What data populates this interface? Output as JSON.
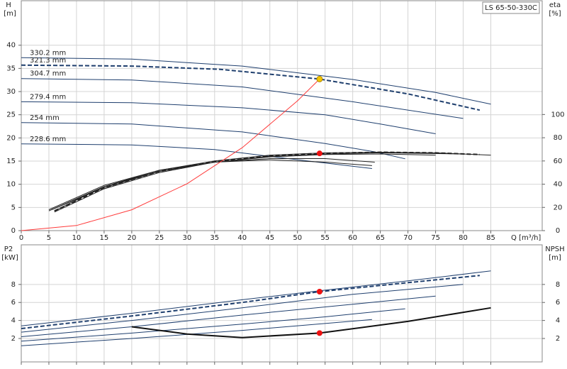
{
  "chart_data": [
    {
      "type": "line",
      "title": "LS 65-50-330C",
      "x_label": "Q [m³/h]",
      "y_label": "H",
      "y_unit": "[m]",
      "y2_label": "eta",
      "y2_unit": "[%]",
      "xlim": [
        0,
        94.3
      ],
      "xticks": [
        0,
        5,
        10,
        15,
        20,
        25,
        30,
        35,
        40,
        45,
        50,
        55,
        60,
        65,
        70,
        75,
        80,
        85
      ],
      "ylim": [
        0,
        49.6
      ],
      "yticks": [
        0,
        5,
        10,
        15,
        20,
        25,
        30,
        35,
        40
      ],
      "y2lim": [
        0,
        198
      ],
      "y2ticks": [
        0,
        20,
        40,
        60,
        80,
        100
      ],
      "grid": true,
      "series": [
        {
          "name": "330.2 mm",
          "color": "#1f3f6e",
          "x": [
            0,
            20,
            40,
            60,
            75,
            85
          ],
          "values": [
            37.3,
            37.0,
            35.5,
            32.6,
            29.8,
            27.3
          ]
        },
        {
          "name": "321.3 mm",
          "color": "#1f3f6e",
          "style": "dashed",
          "x": [
            0,
            20,
            36,
            54,
            70,
            83
          ],
          "values": [
            35.7,
            35.5,
            34.8,
            32.7,
            29.5,
            26.0
          ]
        },
        {
          "name": "304.7 mm",
          "color": "#1f3f6e",
          "x": [
            0,
            20,
            40,
            60,
            80
          ],
          "values": [
            32.8,
            32.5,
            31.0,
            27.8,
            24.2
          ]
        },
        {
          "name": "279.4 mm",
          "color": "#1f3f6e",
          "x": [
            0,
            20,
            40,
            55,
            65,
            75
          ],
          "values": [
            27.8,
            27.6,
            26.5,
            25.0,
            23.0,
            20.9
          ]
        },
        {
          "name": "254 mm",
          "color": "#1f3f6e",
          "x": [
            0,
            20,
            40,
            55,
            64,
            69.5
          ],
          "values": [
            23.3,
            23.0,
            21.3,
            18.8,
            17.0,
            15.5
          ]
        },
        {
          "name": "228.6 mm",
          "color": "#1f3f6e",
          "x": [
            0,
            20,
            35,
            50,
            63.5
          ],
          "values": [
            18.7,
            18.5,
            17.5,
            15.3,
            13.4
          ]
        },
        {
          "color": "#222222",
          "axis": "y2",
          "x": [
            6,
            15,
            25,
            35,
            45,
            55,
            65,
            75,
            85
          ],
          "values": [
            17,
            38,
            52,
            60,
            65,
            67,
            67.5,
            67,
            65
          ]
        },
        {
          "color": "#222222",
          "axis": "y2",
          "style": "dashed",
          "x": [
            6,
            15,
            25,
            35,
            45,
            54,
            65,
            75,
            83
          ],
          "values": [
            17,
            37,
            51,
            59.5,
            64.5,
            66.5,
            67.5,
            67,
            65.5
          ]
        },
        {
          "color": "#222222",
          "axis": "y2",
          "x": [
            6,
            15,
            25,
            35,
            45,
            55,
            65,
            80
          ],
          "values": [
            16,
            36,
            50,
            59,
            64,
            66,
            67,
            66
          ]
        },
        {
          "color": "#222222",
          "axis": "y2",
          "x": [
            5.5,
            15,
            25,
            35,
            45,
            55,
            65,
            75
          ],
          "values": [
            18,
            37,
            51,
            59,
            63.5,
            65.5,
            66,
            65
          ]
        },
        {
          "color": "#222222",
          "axis": "y2",
          "x": [
            5,
            15,
            25,
            35,
            45,
            55,
            64
          ],
          "values": [
            17,
            38,
            51,
            59,
            62,
            62,
            59
          ]
        },
        {
          "color": "#222222",
          "axis": "y2",
          "x": [
            5,
            15,
            25,
            35,
            45,
            55,
            63.5
          ],
          "values": [
            18,
            39,
            52,
            59,
            61,
            59,
            56
          ]
        },
        {
          "color": "#ff3b3b",
          "x": [
            0,
            10,
            20,
            30,
            40,
            50,
            54
          ],
          "values": [
            0,
            1.1,
            4.5,
            10.1,
            17.9,
            28,
            32.7
          ]
        },
        {
          "color": "#f5c400",
          "marker": true,
          "x": [
            54
          ],
          "values": [
            32.7
          ]
        },
        {
          "color": "#ee1111",
          "marker": true,
          "axis": "y2",
          "x": [
            54
          ],
          "values": [
            66.5
          ]
        }
      ]
    },
    {
      "type": "line",
      "y_label": "P2",
      "y_unit": "[kW]",
      "y2_label": "NPSH",
      "y2_unit": "[m]",
      "xlim": [
        0,
        94.3
      ],
      "ylim": [
        -0.6,
        12.4
      ],
      "yticks": [
        2,
        4,
        6,
        8
      ],
      "y2lim": [
        -0.6,
        12.4
      ],
      "y2ticks": [
        2,
        4,
        6,
        8
      ],
      "grid": true,
      "series": [
        {
          "color": "#1f3f6e",
          "x": [
            0,
            20,
            40,
            54,
            70,
            85
          ],
          "values": [
            3.4,
            4.8,
            6.3,
            7.3,
            8.4,
            9.5
          ]
        },
        {
          "color": "#1f3f6e",
          "style": "dashed",
          "x": [
            0,
            20,
            40,
            54,
            70,
            83
          ],
          "values": [
            3.1,
            4.5,
            6.0,
            7.2,
            8.2,
            9.0
          ]
        },
        {
          "color": "#1f3f6e",
          "x": [
            0,
            20,
            40,
            60,
            80
          ],
          "values": [
            2.7,
            4.0,
            5.4,
            6.9,
            8.0
          ]
        },
        {
          "color": "#1f3f6e",
          "x": [
            0,
            20,
            40,
            60,
            75
          ],
          "values": [
            2.2,
            3.3,
            4.6,
            5.8,
            6.7
          ]
        },
        {
          "color": "#1f3f6e",
          "x": [
            0,
            20,
            40,
            55,
            69.5
          ],
          "values": [
            1.7,
            2.6,
            3.6,
            4.4,
            5.3
          ]
        },
        {
          "color": "#1f3f6e",
          "x": [
            0,
            20,
            40,
            63.5
          ],
          "values": [
            1.2,
            2.0,
            2.9,
            4.1
          ]
        },
        {
          "color": "#111111",
          "axis": "y2",
          "width": 2,
          "x": [
            20,
            30,
            40,
            54,
            70,
            85
          ],
          "values": [
            3.3,
            2.5,
            2.1,
            2.6,
            3.9,
            5.4
          ]
        },
        {
          "color": "#ee1111",
          "marker": true,
          "x": [
            54
          ],
          "values": [
            7.2
          ]
        },
        {
          "color": "#ee1111",
          "marker": true,
          "axis": "y2",
          "x": [
            54
          ],
          "values": [
            2.6
          ]
        }
      ]
    }
  ]
}
